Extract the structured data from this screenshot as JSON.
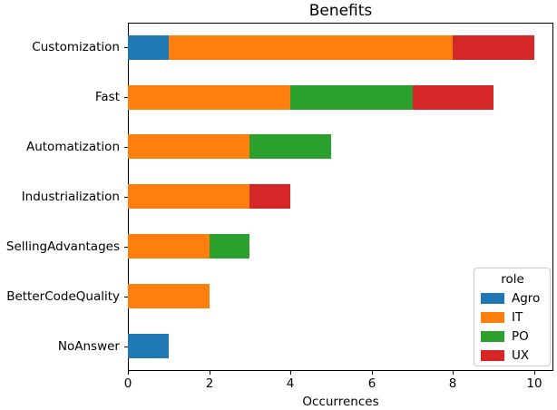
{
  "chart_data": {
    "type": "bar",
    "orientation": "horizontal",
    "stacked": true,
    "title": "Benefits",
    "xlabel": "Occurrences",
    "ylabel": "",
    "categories": [
      "Customization",
      "Fast",
      "Automatization",
      "Industrialization",
      "SellingAdvantages",
      "BetterCodeQuality",
      "NoAnswer"
    ],
    "series": [
      {
        "name": "Agro",
        "color": "#1f77b4",
        "values": [
          1,
          0,
          0,
          0,
          0,
          0,
          1
        ]
      },
      {
        "name": "IT",
        "color": "#ff7f0e",
        "values": [
          7,
          4,
          3,
          3,
          2,
          2,
          0
        ]
      },
      {
        "name": "PO",
        "color": "#2ca02c",
        "values": [
          0,
          3,
          2,
          0,
          1,
          0,
          0
        ]
      },
      {
        "name": "UX",
        "color": "#d62728",
        "values": [
          2,
          2,
          0,
          1,
          0,
          0,
          0
        ]
      }
    ],
    "totals": [
      10,
      9,
      5,
      4,
      3,
      2,
      1
    ],
    "x_ticks": [
      0,
      2,
      4,
      6,
      8,
      10
    ],
    "xlim": [
      0,
      10.47
    ],
    "bar_fraction": 0.5,
    "grid": false,
    "legend": {
      "title": "role",
      "position": "lower right"
    },
    "colors": {
      "axis": "#000000",
      "background": "#ffffff",
      "legend_border": "#cccccc"
    }
  }
}
